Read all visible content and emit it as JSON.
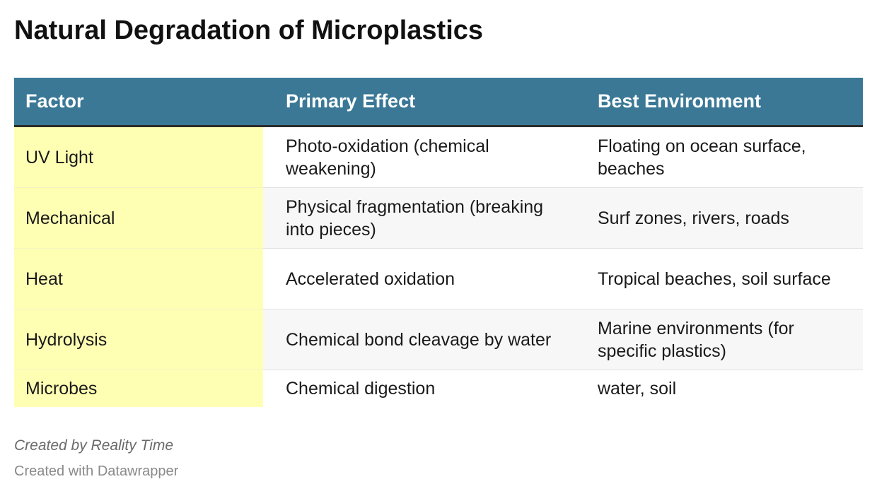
{
  "title": "Natural Degradation of Microplastics",
  "chart_data": {
    "type": "table",
    "title": "Natural Degradation of Microplastics",
    "columns": [
      "Factor",
      "Primary Effect",
      "Best Environment"
    ],
    "rows": [
      [
        "UV Light",
        "Photo-oxidation (chemical weakening)",
        "Floating on ocean surface, beaches"
      ],
      [
        "Mechanical",
        "Physical fragmentation (breaking into pieces)",
        "Surf zones, rivers, roads"
      ],
      [
        "Heat",
        "Accelerated oxidation",
        "Tropical beaches, soil surface"
      ],
      [
        "Hydrolysis",
        "Chemical bond cleavage by water",
        "Marine environments (for specific plastics)"
      ],
      [
        "Microbes",
        "Chemical digestion",
        "water, soil"
      ]
    ]
  },
  "colors": {
    "header_background": "#3a7896",
    "header_text": "#ffffff",
    "factor_column_highlight": "#ffffb3",
    "alternate_row": "#f7f7f7"
  },
  "footer": {
    "notes": "Created by Reality Time",
    "credit": "Created with Datawrapper"
  }
}
